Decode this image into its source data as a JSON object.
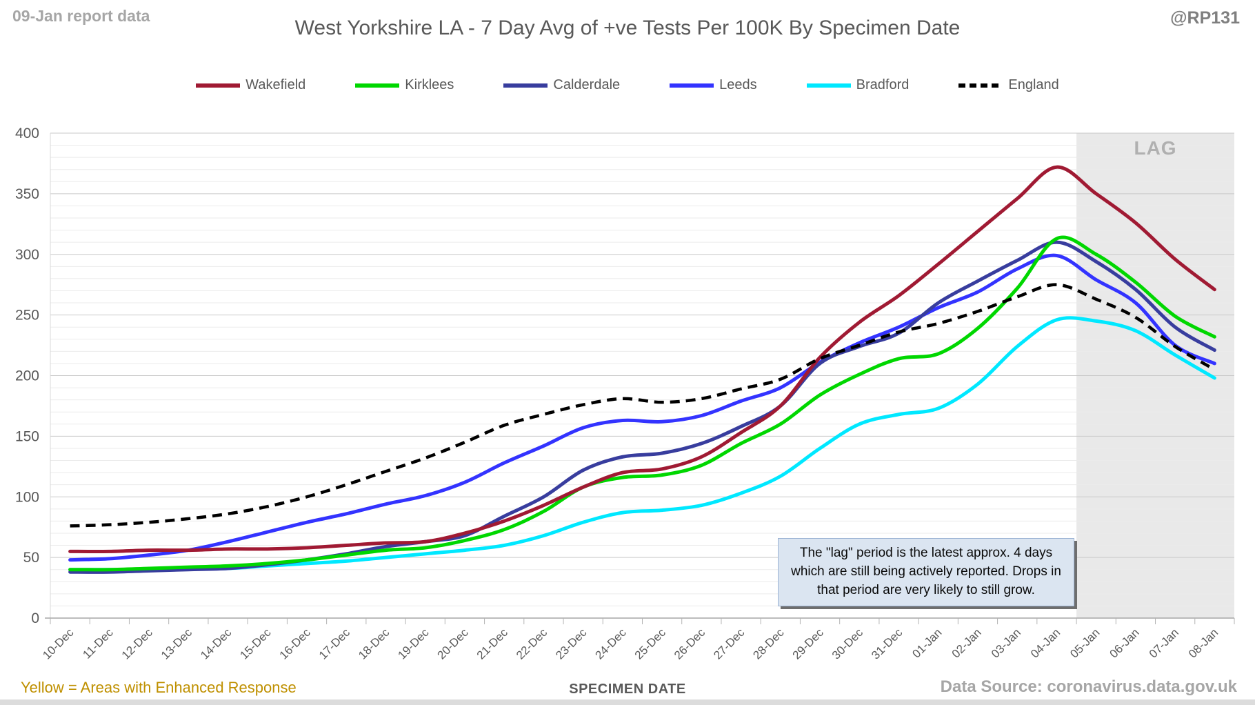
{
  "header": {
    "report_note": "09-Jan report data",
    "title": "West Yorkshire LA - 7 Day Avg of +ve Tests Per 100K By Specimen Date",
    "handle": "@RP131"
  },
  "footer": {
    "enhanced_note": "Yellow = Areas with Enhanced Response",
    "xlabel": "SPECIMEN DATE",
    "source": "Data Source: coronavirus.data.gov.uk"
  },
  "annotations": {
    "lag_label": "LAG",
    "lag_note": "The \"lag\" period is the latest approx. 4 days which are still being actively reported. Drops in that period are very likely to still grow."
  },
  "colors": {
    "grid_minor": "#ebebeb",
    "grid_major": "#c9c9c9",
    "axis_line": "#a6a6a6",
    "tick_mark": "#b3b3b3",
    "axis_text": "#595959",
    "lag_fill": "#e9e9e9",
    "lag_text": "#b0b0b0"
  },
  "chart_data": {
    "type": "line",
    "title": "West Yorkshire LA - 7 Day Avg of +ve Tests Per 100K By Specimen Date",
    "xlabel": "SPECIMEN DATE",
    "ylabel": "",
    "ylim": [
      0,
      400
    ],
    "ytick_step": 50,
    "yminor_step": 10,
    "grid": true,
    "legend_position": "top",
    "lag_from_index": 25.5,
    "x": [
      "10-Dec",
      "11-Dec",
      "12-Dec",
      "13-Dec",
      "14-Dec",
      "15-Dec",
      "16-Dec",
      "17-Dec",
      "18-Dec",
      "19-Dec",
      "20-Dec",
      "21-Dec",
      "22-Dec",
      "23-Dec",
      "24-Dec",
      "25-Dec",
      "26-Dec",
      "27-Dec",
      "28-Dec",
      "29-Dec",
      "30-Dec",
      "31-Dec",
      "01-Jan",
      "02-Jan",
      "03-Jan",
      "04-Jan",
      "05-Jan",
      "06-Jan",
      "07-Jan",
      "08-Jan"
    ],
    "series": [
      {
        "name": "Wakefield",
        "color": "#a01a33",
        "dash": null,
        "values": [
          55,
          55,
          56,
          56,
          57,
          57,
          58,
          60,
          62,
          63,
          70,
          80,
          93,
          108,
          120,
          123,
          133,
          153,
          175,
          215,
          244,
          266,
          292,
          319,
          346,
          372,
          350,
          326,
          296,
          271
        ]
      },
      {
        "name": "Kirklees",
        "color": "#00d700",
        "dash": null,
        "values": [
          40,
          40,
          41,
          42,
          43,
          45,
          48,
          52,
          56,
          58,
          64,
          73,
          88,
          108,
          116,
          118,
          126,
          144,
          160,
          184,
          201,
          214,
          218,
          239,
          272,
          313,
          300,
          277,
          249,
          232
        ]
      },
      {
        "name": "Calderdale",
        "color": "#383d9e",
        "dash": null,
        "values": [
          38,
          38,
          39,
          40,
          41,
          44,
          48,
          53,
          59,
          63,
          68,
          84,
          100,
          122,
          133,
          136,
          144,
          158,
          175,
          210,
          224,
          235,
          260,
          278,
          295,
          310,
          294,
          271,
          240,
          221
        ]
      },
      {
        "name": "Leeds",
        "color": "#3333ff",
        "dash": null,
        "values": [
          48,
          49,
          52,
          56,
          63,
          71,
          79,
          86,
          94,
          101,
          112,
          128,
          142,
          157,
          163,
          162,
          167,
          179,
          190,
          211,
          227,
          240,
          256,
          269,
          288,
          299,
          279,
          260,
          225,
          210
        ]
      },
      {
        "name": "Bradford",
        "color": "#00e8ff",
        "dash": null,
        "values": [
          40,
          40,
          40,
          41,
          41,
          43,
          45,
          47,
          50,
          53,
          56,
          60,
          68,
          79,
          87,
          89,
          93,
          103,
          117,
          140,
          160,
          168,
          173,
          193,
          224,
          246,
          245,
          237,
          217,
          198
        ]
      },
      {
        "name": "England",
        "color": "#000000",
        "dash": "14 9",
        "values": [
          76,
          77,
          79,
          82,
          86,
          92,
          100,
          110,
          121,
          132,
          145,
          159,
          168,
          176,
          181,
          178,
          181,
          189,
          197,
          214,
          225,
          236,
          243,
          253,
          265,
          275,
          263,
          248,
          224,
          205
        ]
      }
    ]
  }
}
